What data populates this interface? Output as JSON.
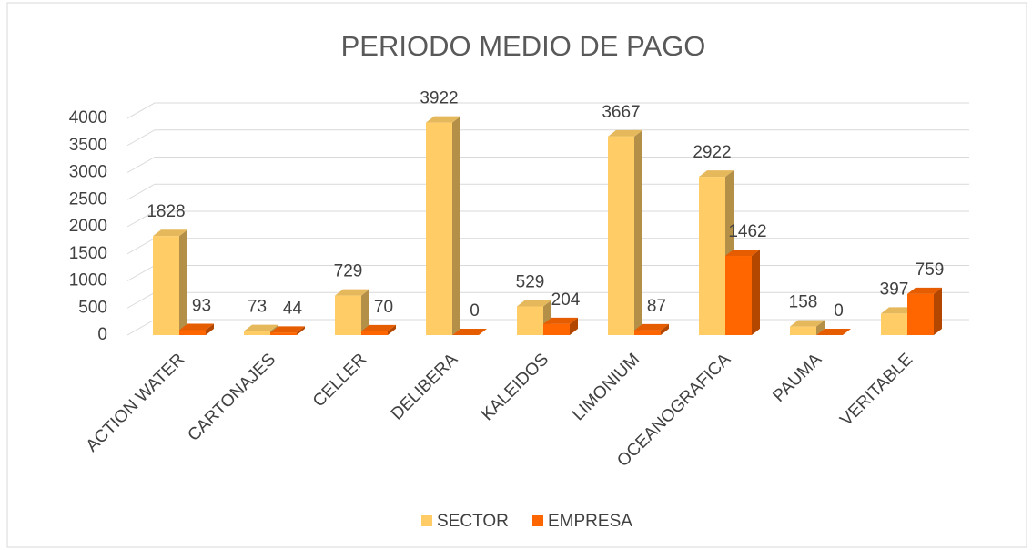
{
  "chart_data": {
    "type": "bar3d",
    "title": "PERIODO MEDIO DE PAGO",
    "categories": [
      "ACTION WATER",
      "CARTONAJES",
      "CELLER",
      "DELIBERA",
      "KALEIDOS",
      "LIMONIUM",
      "OCEANOGRAFICA",
      "PAUMA",
      "VERITABLE"
    ],
    "series": [
      {
        "name": "SECTOR",
        "color": "#FFCC66",
        "values": [
          1828,
          73,
          729,
          3922,
          529,
          3667,
          2922,
          158,
          397
        ]
      },
      {
        "name": "EMPRESA",
        "color": "#FF6600",
        "values": [
          93,
          44,
          70,
          0,
          204,
          87,
          1462,
          0,
          759
        ]
      }
    ],
    "ylim": [
      0,
      4000
    ],
    "yticks": [
      0,
      500,
      1000,
      1500,
      2000,
      2500,
      3000,
      3500,
      4000
    ],
    "grid": true,
    "legend": "bottom"
  }
}
